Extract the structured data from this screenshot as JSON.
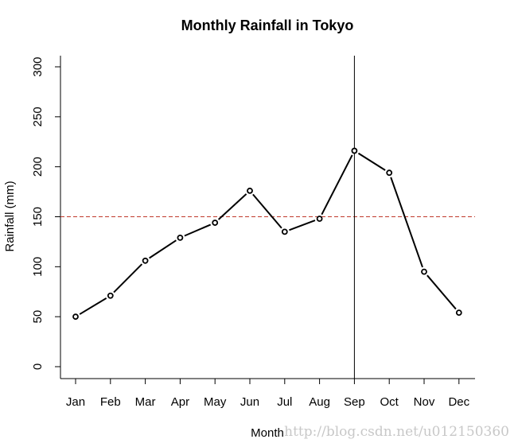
{
  "chart_data": {
    "type": "line",
    "title": "Monthly Rainfall in Tokyo",
    "xlabel": "Month",
    "ylabel": "Rainfall (mm)",
    "categories": [
      "Jan",
      "Feb",
      "Mar",
      "Apr",
      "May",
      "Jun",
      "Jul",
      "Aug",
      "Sep",
      "Oct",
      "Nov",
      "Dec"
    ],
    "values": [
      50,
      71,
      106,
      129,
      144,
      176,
      135,
      148,
      216,
      194,
      95,
      54
    ],
    "ylim": [
      0,
      300
    ],
    "yticks": [
      0,
      50,
      100,
      150,
      200,
      250,
      300
    ],
    "grid": false,
    "legend": "none",
    "reference_lines": {
      "horizontal": {
        "y": 150,
        "style": "dashed",
        "color": "#c0392b"
      },
      "vertical": {
        "x": "Sep",
        "style": "solid",
        "color": "#000000"
      }
    }
  },
  "watermark": "http://blog.csdn.net/u012150360"
}
